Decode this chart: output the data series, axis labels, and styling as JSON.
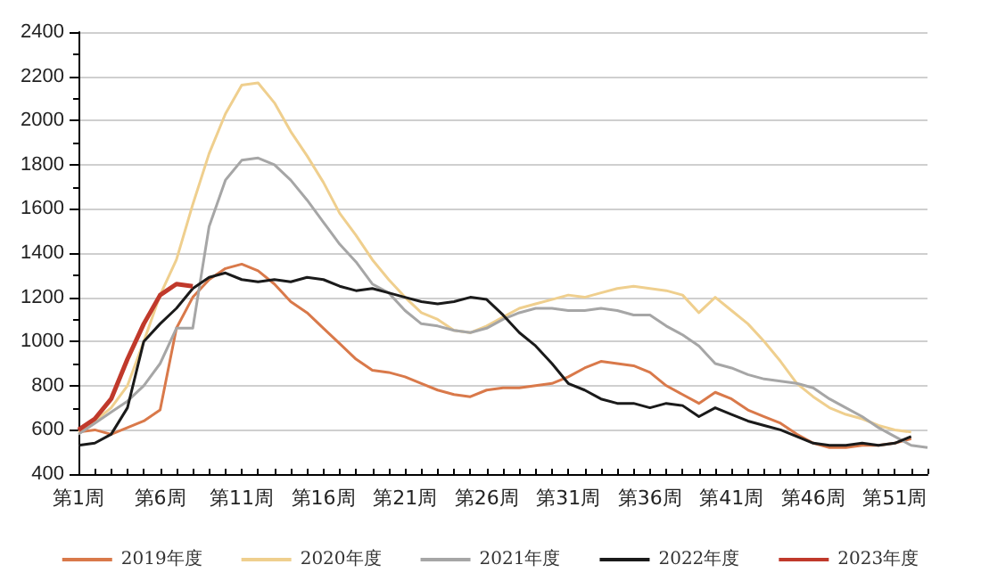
{
  "chart_data": {
    "type": "line",
    "categories": [
      "第1周",
      null,
      null,
      null,
      null,
      "第6周",
      null,
      null,
      null,
      null,
      "第11周",
      null,
      null,
      null,
      null,
      "第16周",
      null,
      null,
      null,
      null,
      "第21周",
      null,
      null,
      null,
      null,
      "第26周",
      null,
      null,
      null,
      null,
      "第31周",
      null,
      null,
      null,
      null,
      "第36周",
      null,
      null,
      null,
      null,
      "第41周",
      null,
      null,
      null,
      null,
      "第46周",
      null,
      null,
      null,
      null,
      "第51周",
      null,
      null
    ],
    "series": [
      {
        "name": "2019年度",
        "color": "#d9794a",
        "values": [
          590,
          600,
          580,
          610,
          640,
          690,
          1060,
          1200,
          1280,
          1330,
          1350,
          1320,
          1260,
          1180,
          1130,
          1060,
          990,
          920,
          870,
          860,
          840,
          810,
          780,
          760,
          750,
          780,
          790,
          790,
          800,
          810,
          840,
          880,
          910,
          900,
          890,
          860,
          800,
          760,
          720,
          770,
          740,
          690,
          660,
          630,
          580,
          540,
          520,
          520,
          530,
          530,
          540,
          560,
          null
        ]
      },
      {
        "name": "2020年度",
        "color": "#efcf8e",
        "values": [
          590,
          640,
          700,
          800,
          1000,
          1210,
          1370,
          1620,
          1850,
          2030,
          2160,
          2170,
          2080,
          1950,
          1840,
          1720,
          1580,
          1480,
          1370,
          1280,
          1200,
          1130,
          1100,
          1050,
          1040,
          1070,
          1110,
          1150,
          1170,
          1190,
          1210,
          1200,
          1220,
          1240,
          1250,
          1240,
          1230,
          1210,
          1130,
          1200,
          1140,
          1080,
          1000,
          910,
          810,
          750,
          700,
          670,
          650,
          620,
          600,
          590,
          null
        ]
      },
      {
        "name": "2021年度",
        "color": "#a6a6a6",
        "values": [
          580,
          630,
          680,
          730,
          800,
          900,
          1060,
          1060,
          1520,
          1730,
          1820,
          1830,
          1800,
          1730,
          1640,
          1540,
          1440,
          1360,
          1260,
          1220,
          1140,
          1080,
          1070,
          1050,
          1040,
          1060,
          1100,
          1130,
          1150,
          1150,
          1140,
          1140,
          1150,
          1140,
          1120,
          1120,
          1070,
          1030,
          980,
          900,
          880,
          850,
          830,
          820,
          810,
          790,
          740,
          700,
          660,
          610,
          570,
          530,
          520
        ]
      },
      {
        "name": "2022年度",
        "color": "#1a1a1a",
        "values": [
          530,
          540,
          580,
          700,
          1000,
          1080,
          1150,
          1240,
          1290,
          1310,
          1280,
          1270,
          1280,
          1270,
          1290,
          1280,
          1250,
          1230,
          1240,
          1220,
          1200,
          1180,
          1170,
          1180,
          1200,
          1190,
          1120,
          1040,
          980,
          900,
          810,
          780,
          740,
          720,
          720,
          700,
          720,
          710,
          660,
          700,
          670,
          640,
          620,
          600,
          570,
          540,
          530,
          530,
          540,
          530,
          540,
          570,
          null
        ]
      },
      {
        "name": "2023年度",
        "color": "#c0392b",
        "values": [
          600,
          650,
          740,
          920,
          1080,
          1210,
          1260,
          1250,
          null,
          null,
          null,
          null,
          null,
          null,
          null,
          null,
          null,
          null,
          null,
          null,
          null,
          null,
          null,
          null,
          null,
          null,
          null,
          null,
          null,
          null,
          null,
          null,
          null,
          null,
          null,
          null,
          null,
          null,
          null,
          null,
          null,
          null,
          null,
          null,
          null,
          null,
          null,
          null,
          null,
          null,
          null,
          null,
          null
        ]
      }
    ],
    "ylim": [
      400,
      2400
    ],
    "yticks": [
      400,
      600,
      800,
      1000,
      1200,
      1400,
      1600,
      1800,
      2000,
      2200,
      2400
    ],
    "grid": "y",
    "legend": "bottom",
    "marker": "none",
    "line_style": "solid"
  }
}
